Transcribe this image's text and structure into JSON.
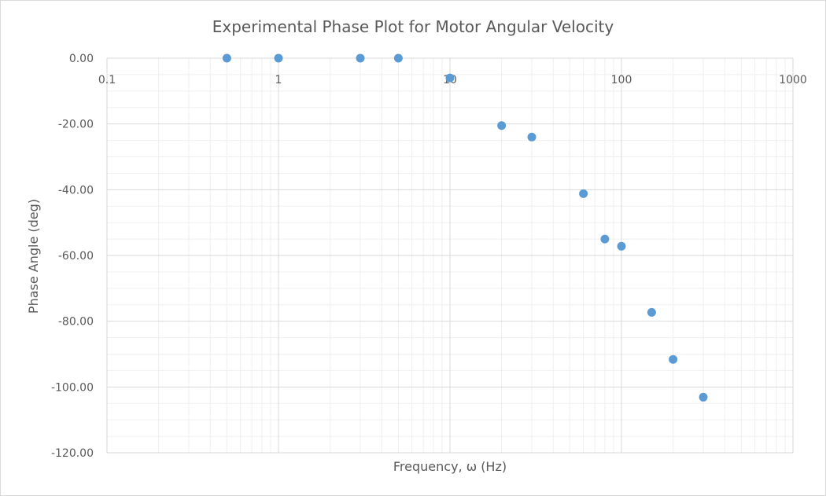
{
  "chart_data": {
    "type": "scatter",
    "title": "Experimental Phase Plot for Motor Angular Velocity",
    "xlabel": "Frequency, ω (Hz)",
    "ylabel": "Phase Angle (deg)",
    "x_scale": "log",
    "xlim": [
      0.1,
      1000
    ],
    "ylim": [
      -120,
      0
    ],
    "x_tick_values": [
      0.1,
      1,
      10,
      100,
      1000
    ],
    "x_tick_labels": [
      "0.1",
      "1",
      "10",
      "100",
      "1000"
    ],
    "y_tick_values": [
      0,
      -20,
      -40,
      -60,
      -80,
      -100,
      -120
    ],
    "y_tick_labels": [
      "0.00",
      "-20.00",
      "-40.00",
      "-60.00",
      "-80.00",
      "-100.00",
      "-120.00"
    ],
    "grid": true,
    "minor_grid": true,
    "legend": "none",
    "marker_color": "#5b9bd5",
    "series": [
      {
        "points": [
          {
            "x": 0.5,
            "y": 0
          },
          {
            "x": 1,
            "y": 0
          },
          {
            "x": 3,
            "y": 0
          },
          {
            "x": 5,
            "y": 0
          },
          {
            "x": 10,
            "y": -6
          },
          {
            "x": 20,
            "y": -20.5
          },
          {
            "x": 30,
            "y": -24
          },
          {
            "x": 60,
            "y": -41.2
          },
          {
            "x": 80,
            "y": -55
          },
          {
            "x": 100,
            "y": -57.2
          },
          {
            "x": 150,
            "y": -77.3
          },
          {
            "x": 200,
            "y": -91.6
          },
          {
            "x": 300,
            "y": -103.1
          }
        ]
      }
    ]
  }
}
